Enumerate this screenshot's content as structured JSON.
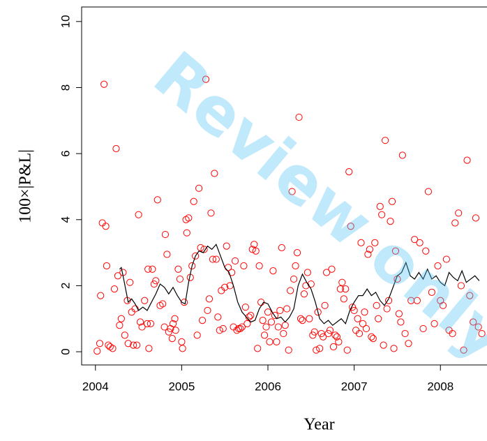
{
  "chart_data": {
    "type": "scatter",
    "xlabel": "Year",
    "ylabel": "100×|P&L|",
    "watermark": "Review only",
    "xlim": [
      2003.84,
      2008.54
    ],
    "ylim": [
      -0.4,
      10.44
    ],
    "xticks": [
      2004,
      2005,
      2006,
      2007,
      2008
    ],
    "yticks": [
      0,
      2,
      4,
      6,
      8,
      10
    ],
    "series": [
      {
        "mark": "circle",
        "color": "#ff0000",
        "x": [
          2004.02,
          2004.05,
          2004.06,
          2004.08,
          2004.1,
          2004.12,
          2004.13,
          2004.15,
          2004.17,
          2004.2,
          2004.22,
          2004.24,
          2004.26,
          2004.28,
          2004.3,
          2004.32,
          2004.34,
          2004.37,
          2004.38,
          2004.4,
          2004.42,
          2004.44,
          2004.46,
          2004.48,
          2004.5,
          2004.52,
          2004.54,
          2004.57,
          2004.6,
          2004.61,
          2004.62,
          2004.64,
          2004.66,
          2004.68,
          2004.7,
          2004.72,
          2004.75,
          2004.78,
          2004.8,
          2004.81,
          2004.83,
          2004.85,
          2004.87,
          2004.89,
          2004.9,
          2004.92,
          2004.93,
          2004.96,
          2004.98,
          2005.0,
          2005.01,
          2005.03,
          2005.05,
          2005.06,
          2005.08,
          2005.1,
          2005.12,
          2005.14,
          2005.16,
          2005.18,
          2005.2,
          2005.22,
          2005.24,
          2005.26,
          2005.28,
          2005.3,
          2005.32,
          2005.34,
          2005.36,
          2005.38,
          2005.4,
          2005.42,
          2005.44,
          2005.46,
          2005.48,
          2005.5,
          2005.52,
          2005.54,
          2005.56,
          2005.58,
          2005.6,
          2005.62,
          2005.64,
          2005.66,
          2005.68,
          2005.7,
          2005.72,
          2005.74,
          2005.76,
          2005.78,
          2005.8,
          2005.82,
          2005.84,
          2005.86,
          2005.88,
          2005.9,
          2005.92,
          2005.94,
          2005.96,
          2005.98,
          2006.0,
          2006.02,
          2006.04,
          2006.06,
          2006.08,
          2006.1,
          2006.12,
          2006.14,
          2006.16,
          2006.18,
          2006.2,
          2006.22,
          2006.24,
          2006.26,
          2006.28,
          2006.3,
          2006.32,
          2006.34,
          2006.36,
          2006.38,
          2006.4,
          2006.42,
          2006.44,
          2006.46,
          2006.48,
          2006.5,
          2006.52,
          2006.54,
          2006.56,
          2006.58,
          2006.6,
          2006.62,
          2006.64,
          2006.66,
          2006.68,
          2006.7,
          2006.72,
          2006.74,
          2006.76,
          2006.78,
          2006.8,
          2006.82,
          2006.84,
          2006.86,
          2006.88,
          2006.9,
          2006.92,
          2006.94,
          2006.96,
          2006.98,
          2007.0,
          2007.02,
          2007.04,
          2007.06,
          2007.08,
          2007.1,
          2007.12,
          2007.14,
          2007.16,
          2007.18,
          2007.2,
          2007.22,
          2007.24,
          2007.26,
          2007.28,
          2007.3,
          2007.32,
          2007.34,
          2007.36,
          2007.38,
          2007.4,
          2007.42,
          2007.44,
          2007.46,
          2007.48,
          2007.5,
          2007.52,
          2007.54,
          2007.56,
          2007.59,
          2007.63,
          2007.66,
          2007.7,
          2007.73,
          2007.76,
          2007.8,
          2007.83,
          2007.86,
          2007.9,
          2007.93,
          2007.97,
          2008.0,
          2008.03,
          2008.07,
          2008.1,
          2008.14,
          2008.17,
          2008.21,
          2008.24,
          2008.27,
          2008.31,
          2008.34,
          2008.38,
          2008.41,
          2008.44,
          2008.48
        ],
        "values": [
          0.02,
          0.25,
          1.7,
          3.9,
          8.1,
          3.8,
          2.6,
          0.2,
          0.15,
          0.1,
          1.9,
          6.15,
          2.3,
          0.8,
          1.0,
          2.4,
          0.5,
          1.55,
          0.25,
          2.1,
          1.2,
          0.2,
          1.3,
          0.2,
          4.15,
          0.9,
          0.75,
          1.55,
          0.85,
          2.5,
          0.1,
          0.85,
          2.5,
          2.05,
          2.15,
          4.6,
          1.4,
          1.45,
          0.75,
          3.55,
          2.95,
          0.6,
          0.7,
          0.4,
          0.85,
          1.0,
          0.65,
          2.5,
          2.2,
          0.3,
          0.1,
          1.5,
          4.0,
          3.6,
          4.05,
          2.25,
          2.6,
          4.55,
          2.9,
          0.5,
          4.95,
          3.15,
          0.95,
          3.1,
          8.25,
          1.25,
          1.6,
          4.2,
          2.8,
          5.4,
          2.8,
          1.05,
          0.65,
          1.85,
          0.7,
          1.95,
          3.2,
          2.55,
          2.0,
          2.4,
          0.75,
          2.75,
          0.65,
          0.7,
          0.7,
          0.75,
          2.6,
          1.35,
          0.85,
          1.05,
          1.1,
          3.1,
          3.25,
          3.05,
          0.1,
          2.6,
          1.5,
          0.95,
          0.5,
          0.75,
          1.2,
          0.3,
          0.9,
          2.45,
          1.1,
          0.3,
          0.75,
          1.25,
          3.15,
          0.55,
          0.8,
          1.3,
          0.05,
          1.85,
          4.85,
          2.2,
          2.6,
          3.0,
          7.1,
          1.0,
          0.95,
          1.75,
          2.0,
          2.4,
          1.0,
          2.05,
          0.5,
          0.6,
          0.05,
          1.2,
          0.1,
          0.55,
          0.45,
          1.4,
          2.4,
          0.55,
          0.65,
          2.5,
          0.15,
          0.5,
          0.45,
          0.3,
          1.9,
          2.1,
          1.6,
          1.9,
          0.05,
          5.45,
          3.8,
          1.35,
          1.25,
          0.65,
          1.0,
          0.55,
          3.3,
          0.85,
          1.2,
          0.7,
          2.95,
          3.1,
          0.45,
          0.4,
          3.3,
          1.4,
          1.0,
          4.4,
          4.15,
          0.2,
          6.4,
          1.3,
          1.55,
          3.95,
          4.55,
          0.1,
          3.05,
          2.2,
          1.15,
          0.9,
          5.95,
          0.55,
          0.25,
          1.55,
          3.4,
          1.55,
          3.3,
          0.7,
          3.05,
          4.85,
          1.8,
          0.85,
          2.6,
          1.55,
          1.4,
          2.8,
          0.65,
          0.55,
          3.9,
          4.2,
          2.0,
          0.05,
          5.8,
          1.7,
          0.9,
          4.05,
          0.75,
          0.55
        ]
      },
      {
        "mark": "line",
        "color": "#000000",
        "x": [
          2004.28,
          2004.3,
          2004.32,
          2004.35,
          2004.38,
          2004.42,
          2004.46,
          2004.5,
          2004.55,
          2004.6,
          2004.65,
          2004.7,
          2004.75,
          2004.8,
          2004.85,
          2004.9,
          2004.95,
          2005.0,
          2005.04,
          2005.08,
          2005.12,
          2005.16,
          2005.2,
          2005.25,
          2005.3,
          2005.35,
          2005.4,
          2005.45,
          2005.5,
          2005.55,
          2005.6,
          2005.65,
          2005.7,
          2005.75,
          2005.8,
          2005.85,
          2005.9,
          2005.95,
          2006.0,
          2006.05,
          2006.1,
          2006.15,
          2006.2,
          2006.25,
          2006.3,
          2006.35,
          2006.4,
          2006.45,
          2006.5,
          2006.55,
          2006.6,
          2006.65,
          2006.7,
          2006.75,
          2006.8,
          2006.85,
          2006.9,
          2006.95,
          2007.0,
          2007.05,
          2007.1,
          2007.15,
          2007.2,
          2007.25,
          2007.3,
          2007.35,
          2007.4,
          2007.45,
          2007.5,
          2007.55,
          2007.6,
          2007.65,
          2007.7,
          2007.75,
          2007.8,
          2007.85,
          2007.9,
          2007.95,
          2008.0,
          2008.05,
          2008.1,
          2008.15,
          2008.2,
          2008.25,
          2008.3,
          2008.35,
          2008.4,
          2008.45
        ],
        "values": [
          2.5,
          2.55,
          2.3,
          1.9,
          1.5,
          1.6,
          1.45,
          1.25,
          1.35,
          1.25,
          1.5,
          1.75,
          2.05,
          1.95,
          1.75,
          1.95,
          1.7,
          1.5,
          1.45,
          2.1,
          2.6,
          2.9,
          3.05,
          3.0,
          3.2,
          3.1,
          3.25,
          2.9,
          2.55,
          2.4,
          2.0,
          1.5,
          1.2,
          1.05,
          0.9,
          0.95,
          1.3,
          1.5,
          1.45,
          1.2,
          1.0,
          1.05,
          0.9,
          1.05,
          1.3,
          2.0,
          2.35,
          2.1,
          1.9,
          1.5,
          1.0,
          0.85,
          0.95,
          0.8,
          0.9,
          1.0,
          0.85,
          1.25,
          1.5,
          1.7,
          1.7,
          1.9,
          1.7,
          1.8,
          1.55,
          1.4,
          1.6,
          1.95,
          2.3,
          2.4,
          2.7,
          2.3,
          2.2,
          2.4,
          2.2,
          2.5,
          2.2,
          2.3,
          2.1,
          2.0,
          2.4,
          2.25,
          2.15,
          2.45,
          2.1,
          2.2,
          2.3,
          2.15
        ]
      }
    ]
  }
}
